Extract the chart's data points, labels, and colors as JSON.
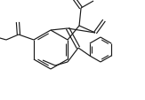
{
  "bg_color": "#ffffff",
  "line_color": "#1a1a1a",
  "lw": 0.85,
  "figsize": [
    1.63,
    1.14
  ],
  "dpi": 100
}
